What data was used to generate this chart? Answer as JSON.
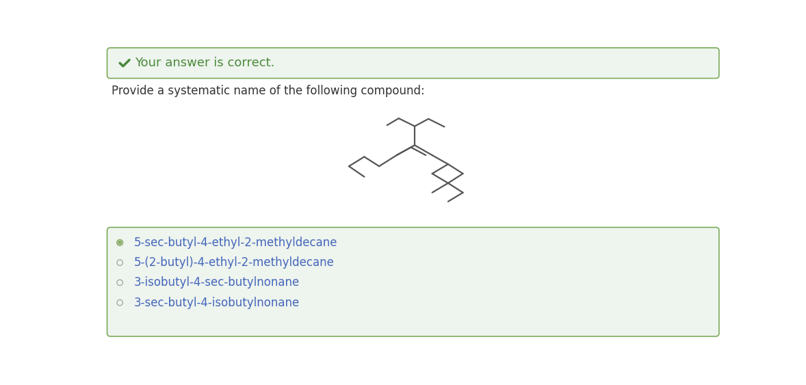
{
  "bg_color": "#ffffff",
  "header_bg": "#eef4ee",
  "header_border": "#7aab5a",
  "header_text": "Your answer is correct.",
  "header_check_color": "#4a8a3a",
  "question_text": "Provide a systematic name of the following compound:",
  "question_color": "#333333",
  "options_bg": "#eef4ee",
  "options_border": "#7aab5a",
  "options": [
    "5-sec-butyl-4-ethyl-2-methyldecane",
    "5-(2-butyl)-4-ethyl-2-methyldecane",
    "3-isobutyl-4-sec-butylnonane",
    "3-sec-butyl-4-isobutylnonane"
  ],
  "selected_option": 0,
  "option_text_color": "#4466bb",
  "molecule_color": "#555555",
  "molecule_linewidth": 1.6,
  "molecule_bonds_img": [
    [
      [
        540,
        150
      ],
      [
        562,
        137
      ]
    ],
    [
      [
        562,
        137
      ],
      [
        592,
        152
      ]
    ],
    [
      [
        592,
        152
      ],
      [
        618,
        138
      ]
    ],
    [
      [
        618,
        138
      ],
      [
        648,
        153
      ]
    ],
    [
      [
        592,
        152
      ],
      [
        592,
        188
      ]
    ],
    [
      [
        592,
        188
      ],
      [
        558,
        207
      ]
    ],
    [
      [
        558,
        207
      ],
      [
        585,
        192
      ]
    ],
    [
      [
        585,
        192
      ],
      [
        613,
        207
      ]
    ],
    [
      [
        558,
        207
      ],
      [
        525,
        228
      ]
    ],
    [
      [
        525,
        228
      ],
      [
        497,
        210
      ]
    ],
    [
      [
        497,
        210
      ],
      [
        468,
        228
      ]
    ],
    [
      [
        468,
        228
      ],
      [
        497,
        248
      ]
    ],
    [
      [
        592,
        188
      ],
      [
        625,
        207
      ]
    ],
    [
      [
        625,
        207
      ],
      [
        655,
        224
      ]
    ],
    [
      [
        655,
        224
      ],
      [
        625,
        242
      ]
    ],
    [
      [
        625,
        242
      ],
      [
        655,
        260
      ]
    ],
    [
      [
        655,
        260
      ],
      [
        625,
        278
      ]
    ],
    [
      [
        655,
        224
      ],
      [
        683,
        242
      ]
    ],
    [
      [
        683,
        242
      ],
      [
        655,
        260
      ]
    ],
    [
      [
        655,
        260
      ],
      [
        683,
        278
      ]
    ],
    [
      [
        683,
        278
      ],
      [
        655,
        295
      ]
    ]
  ]
}
